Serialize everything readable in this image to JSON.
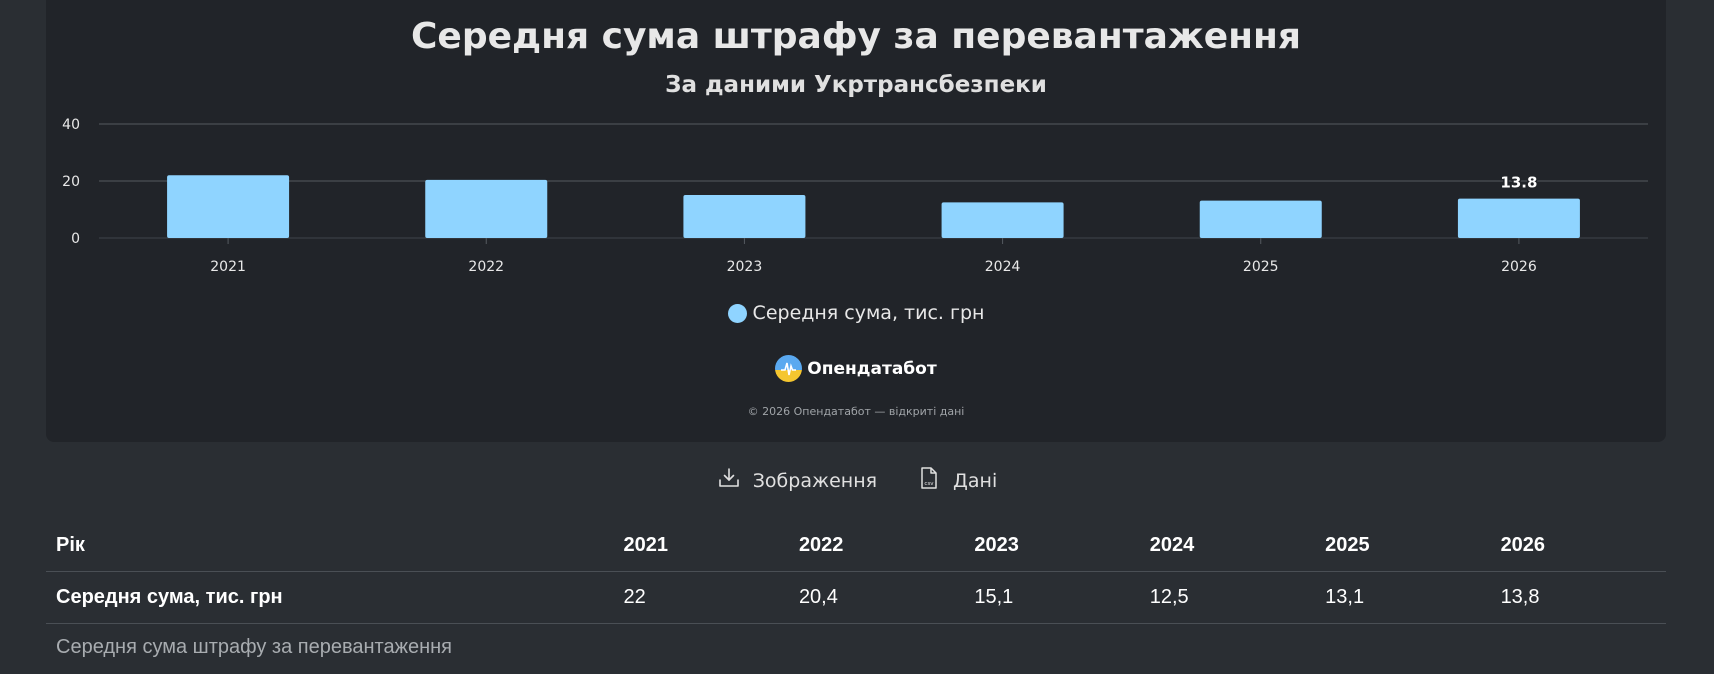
{
  "chart_data": {
    "type": "bar",
    "title": "Середня сума штрафу за перевантаження",
    "subtitle": "За даними Укртрансбезпеки",
    "categories": [
      "2021",
      "2022",
      "2023",
      "2024",
      "2025",
      "2026"
    ],
    "series": [
      {
        "name": "Середня сума, тис. грн",
        "values": [
          22,
          20.4,
          15.1,
          12.5,
          13.1,
          13.8
        ],
        "color": "#8fd4ff"
      }
    ],
    "data_labels": [
      {
        "category": "2026",
        "text": "13.8"
      }
    ],
    "ylim": [
      0,
      40
    ],
    "yticks": [
      "0",
      "20",
      "40"
    ],
    "grid": true,
    "legend_position": "bottom-center"
  },
  "brand": {
    "name": "Опендатабот",
    "logo_icon": "opendatabot-logo-icon"
  },
  "copyright": "© 2026 Опендатабот — відкриті дані",
  "actions": {
    "image_label": "Зображення",
    "image_icon": "download-icon",
    "data_label": "Дані",
    "data_icon": "csv-file-icon"
  },
  "table": {
    "header_label": "Рік",
    "years": [
      "2021",
      "2022",
      "2023",
      "2024",
      "2025",
      "2026"
    ],
    "row_label": "Середня сума, тис. грн",
    "row_values": [
      "22",
      "20,4",
      "15,1",
      "12,5",
      "13,1",
      "13,8"
    ]
  },
  "caption": "Середня сума штрафу за перевантаження",
  "colors": {
    "background": "#2a2e33",
    "card": "#212429",
    "bar": "#8fd4ff"
  }
}
